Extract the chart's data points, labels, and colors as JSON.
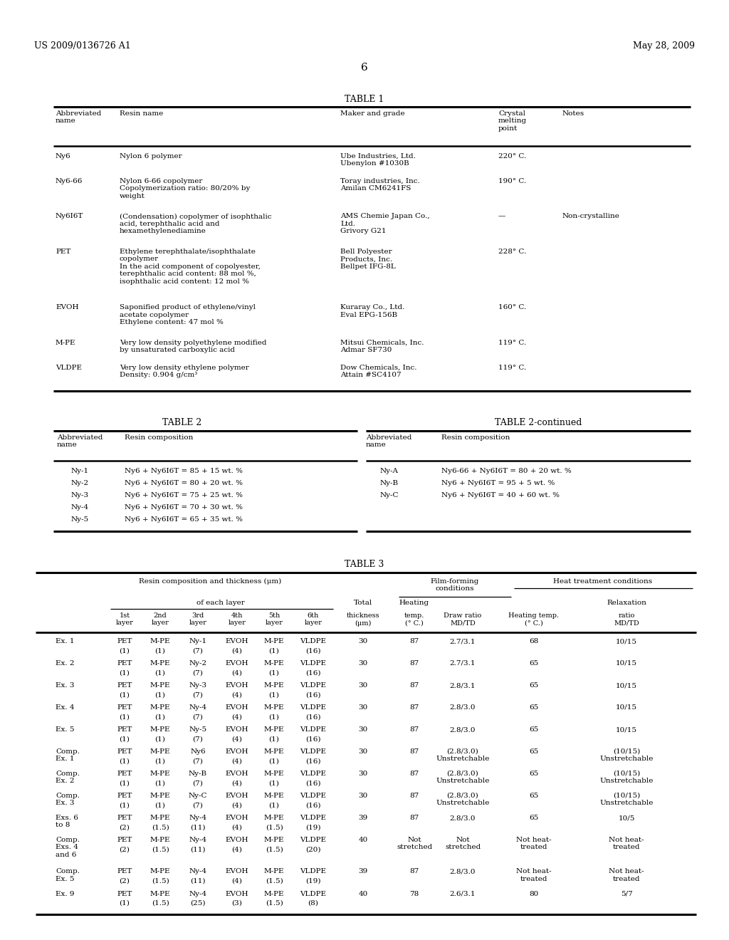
{
  "header_left": "US 2009/0136726 A1",
  "header_right": "May 28, 2009",
  "page_number": "6",
  "bg": "#ffffff",
  "table1_title": "TABLE 1",
  "table2_title": "TABLE 2",
  "table2cont_title": "TABLE 2-continued",
  "table3_title": "TABLE 3",
  "t1_rows": [
    [
      "Ny6",
      "Nylon 6 polymer",
      "Ube Industries, Ltd.\nUbenylon #1030B",
      "220° C.",
      ""
    ],
    [
      "Ny6-66",
      "Nylon 6-66 copolymer\nCopolymerization ratio: 80/20% by\nweight",
      "Toray industries, Inc.\nAmilan CM6241FS",
      "190° C.",
      ""
    ],
    [
      "Ny6I6T",
      "(Condensation) copolymer of isophthalic\nacid, terephthalic acid and\nhexamethylenediamine",
      "AMS Chemie Japan Co.,\nLtd.\nGrivory G21",
      "—",
      "Non-crystalline"
    ],
    [
      "PET",
      "Ethylene terephthalate/isophthalate\ncopolymer\nIn the acid component of copolyester,\nterephthalic acid content: 88 mol %,\nisophthalic acid content: 12 mol %",
      "Bell Polyester\nProducts, Inc.\nBellpet IFG-8L",
      "228° C.",
      ""
    ],
    [
      "EVOH",
      "Saponified product of ethylene/vinyl\nacetate copolymer\nEthylene content: 47 mol %",
      "Kuraray Co., Ltd.\nEval EPG-156B",
      "160° C.",
      ""
    ],
    [
      "M-PE",
      "Very low density polyethylene modified\nby unsaturated carboxylic acid",
      "Mitsui Chemicals, Inc.\nAdmar SF730",
      "119° C.",
      ""
    ],
    [
      "VLDPE",
      "Very low density ethylene polymer\nDensity: 0.904 g/cm³",
      "Dow Chemicals, Inc.\nAttain #SC4107",
      "119° C.",
      ""
    ]
  ],
  "t2_rows": [
    [
      "Ny-1",
      "Ny6 + Ny6I6T = 85 + 15 wt. %"
    ],
    [
      "Ny-2",
      "Ny6 + Ny6I6T = 80 + 20 wt. %"
    ],
    [
      "Ny-3",
      "Ny6 + Ny6I6T = 75 + 25 wt. %"
    ],
    [
      "Ny-4",
      "Ny6 + Ny6I6T = 70 + 30 wt. %"
    ],
    [
      "Ny-5",
      "Ny6 + Ny6I6T = 65 + 35 wt. %"
    ]
  ],
  "t2c_rows": [
    [
      "Ny-A",
      "Ny6-66 + Ny6I6T = 80 + 20 wt. %"
    ],
    [
      "Ny-B",
      "Ny6 + Ny6I6T = 95 + 5 wt. %"
    ],
    [
      "Ny-C",
      "Ny6 + Ny6I6T = 40 + 60 wt. %"
    ]
  ],
  "t3_rows": [
    [
      "Ex. 1",
      "PET",
      "M-PE",
      "Ny-1",
      "EVOH",
      "M-PE",
      "VLDPE",
      "(1)",
      "(1)",
      "(7)",
      "(4)",
      "(1)",
      "(16)",
      "30",
      "87",
      "2.7/3.1",
      "68",
      "10/15"
    ],
    [
      "Ex. 2",
      "PET",
      "M-PE",
      "Ny-2",
      "EVOH",
      "M-PE",
      "VLDPE",
      "(1)",
      "(1)",
      "(7)",
      "(4)",
      "(1)",
      "(16)",
      "30",
      "87",
      "2.7/3.1",
      "65",
      "10/15"
    ],
    [
      "Ex. 3",
      "PET",
      "M-PE",
      "Ny-3",
      "EVOH",
      "M-PE",
      "VLDPE",
      "(1)",
      "(1)",
      "(7)",
      "(4)",
      "(1)",
      "(16)",
      "30",
      "87",
      "2.8/3.1",
      "65",
      "10/15"
    ],
    [
      "Ex. 4",
      "PET",
      "M-PE",
      "Ny-4",
      "EVOH",
      "M-PE",
      "VLDPE",
      "(1)",
      "(1)",
      "(7)",
      "(4)",
      "(1)",
      "(16)",
      "30",
      "87",
      "2.8/3.0",
      "65",
      "10/15"
    ],
    [
      "Ex. 5",
      "PET",
      "M-PE",
      "Ny-5",
      "EVOH",
      "M-PE",
      "VLDPE",
      "(1)",
      "(1)",
      "(7)",
      "(4)",
      "(1)",
      "(16)",
      "30",
      "87",
      "2.8/3.0",
      "65",
      "10/15"
    ],
    [
      "Comp.\nEx. 1",
      "PET",
      "M-PE",
      "Ny6",
      "EVOH",
      "M-PE",
      "VLDPE",
      "(1)",
      "(1)",
      "(7)",
      "(4)",
      "(1)",
      "(16)",
      "30",
      "87",
      "(2.8/3.0)\nUnstretchable",
      "65",
      "(10/15)\nUnstretchable"
    ],
    [
      "Comp.\nEx. 2",
      "PET",
      "M-PE",
      "Ny-B",
      "EVOH",
      "M-PE",
      "VLDPE",
      "(1)",
      "(1)",
      "(7)",
      "(4)",
      "(1)",
      "(16)",
      "30",
      "87",
      "(2.8/3.0)\nUnstretchable",
      "65",
      "(10/15)\nUnstretchable"
    ],
    [
      "Comp.\nEx. 3",
      "PET",
      "M-PE",
      "Ny-C",
      "EVOH",
      "M-PE",
      "VLDPE",
      "(1)",
      "(1)",
      "(7)",
      "(4)",
      "(1)",
      "(16)",
      "30",
      "87",
      "(2.8/3.0)\nUnstretchable",
      "65",
      "(10/15)\nUnstretchable"
    ],
    [
      "Exs. 6\nto 8",
      "PET",
      "M-PE",
      "Ny-4",
      "EVOH",
      "M-PE",
      "VLDPE",
      "(2)",
      "(1.5)",
      "(11)",
      "(4)",
      "(1.5)",
      "(19)",
      "39",
      "87",
      "2.8/3.0",
      "65",
      "10/5"
    ],
    [
      "Comp.\nExs. 4\nand 6",
      "PET",
      "M-PE",
      "Ny-4",
      "EVOH",
      "M-PE",
      "VLDPE",
      "(2)",
      "(1.5)",
      "(11)",
      "(4)",
      "(1.5)",
      "(20)",
      "40",
      "Not\nstretched",
      "Not\nstretched",
      "Not heat-\ntreated",
      "Not heat-\ntreated"
    ],
    [
      "Comp.\nEx. 5",
      "PET",
      "M-PE",
      "Ny-4",
      "EVOH",
      "M-PE",
      "VLDPE",
      "(2)",
      "(1.5)",
      "(11)",
      "(4)",
      "(1.5)",
      "(19)",
      "39",
      "87",
      "2.8/3.0",
      "Not heat-\ntreated",
      "Not heat-\ntreated"
    ],
    [
      "Ex. 9",
      "PET",
      "M-PE",
      "Ny-4",
      "EVOH",
      "M-PE",
      "VLDPE",
      "(1)",
      "(1.5)",
      "(25)",
      "(3)",
      "(1.5)",
      "(8)",
      "40",
      "78",
      "2.6/3.1",
      "80",
      "5/7"
    ]
  ]
}
